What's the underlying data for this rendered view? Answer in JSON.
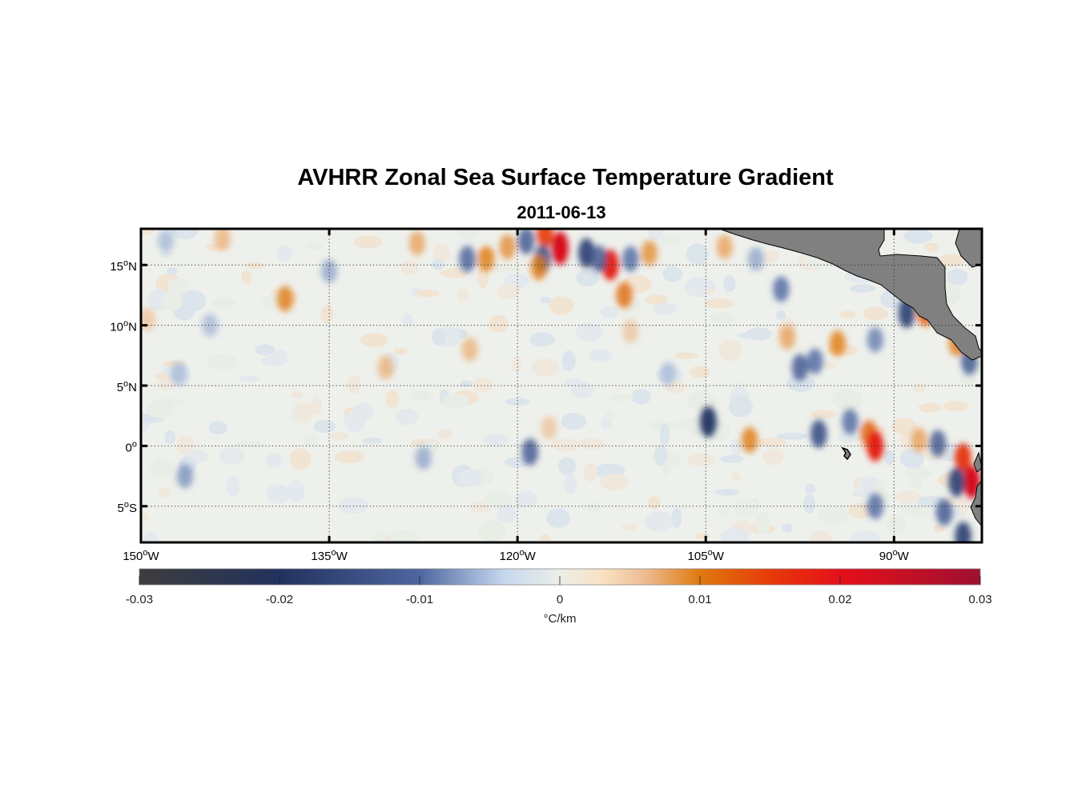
{
  "title": "AVHRR Zonal Sea Surface Temperature Gradient",
  "subtitle": "2011-06-13",
  "map": {
    "region": "Eastern Tropical Pacific",
    "lon_range": [
      -150,
      -83
    ],
    "lat_range": [
      -8,
      18
    ],
    "land_color": "#808080",
    "grid": "dotted",
    "lat_ticks": [
      {
        "value": 15,
        "num": "15",
        "hemi": "N"
      },
      {
        "value": 10,
        "num": "10",
        "hemi": "N"
      },
      {
        "value": 5,
        "num": "5",
        "hemi": "N"
      },
      {
        "value": 0,
        "num": "0",
        "hemi": ""
      },
      {
        "value": -5,
        "num": "5",
        "hemi": "S"
      }
    ],
    "lon_ticks": [
      {
        "value": -150,
        "num": "150",
        "hemi": "W"
      },
      {
        "value": -135,
        "num": "135",
        "hemi": "W"
      },
      {
        "value": -120,
        "num": "120",
        "hemi": "W"
      },
      {
        "value": -105,
        "num": "105",
        "hemi": "W"
      },
      {
        "value": -90,
        "num": "90",
        "hemi": "W"
      }
    ],
    "features": [
      {
        "lon": -116.6,
        "lat": 16.4,
        "value": 0.022
      },
      {
        "lon": -117.8,
        "lat": 17.6,
        "value": 0.015
      },
      {
        "lon": -112.6,
        "lat": 15.0,
        "value": 0.018
      },
      {
        "lon": -111.5,
        "lat": 12.5,
        "value": 0.011
      },
      {
        "lon": -118.0,
        "lat": 15.5,
        "value": -0.014
      },
      {
        "lon": -114.5,
        "lat": 16.0,
        "value": -0.016
      },
      {
        "lon": -113.5,
        "lat": 15.5,
        "value": -0.012
      },
      {
        "lon": -119.3,
        "lat": 17.0,
        "value": -0.012
      },
      {
        "lon": -111.0,
        "lat": 15.5,
        "value": -0.01
      },
      {
        "lon": -118.3,
        "lat": 14.8,
        "value": 0.01
      },
      {
        "lon": -109.5,
        "lat": 16.0,
        "value": 0.009
      },
      {
        "lon": -103.5,
        "lat": 16.5,
        "value": 0.008
      },
      {
        "lon": -101.0,
        "lat": 15.5,
        "value": -0.007
      },
      {
        "lon": -99.0,
        "lat": 13.0,
        "value": -0.01
      },
      {
        "lon": -124.0,
        "lat": 15.5,
        "value": -0.011
      },
      {
        "lon": -122.5,
        "lat": 15.5,
        "value": 0.01
      },
      {
        "lon": -120.8,
        "lat": 16.5,
        "value": 0.009
      },
      {
        "lon": -128.0,
        "lat": 16.8,
        "value": 0.008
      },
      {
        "lon": -148.0,
        "lat": 17.0,
        "value": -0.006
      },
      {
        "lon": -143.5,
        "lat": 17.2,
        "value": 0.007
      },
      {
        "lon": -135.0,
        "lat": 14.5,
        "value": -0.007
      },
      {
        "lon": -138.5,
        "lat": 12.2,
        "value": 0.01
      },
      {
        "lon": -144.5,
        "lat": 10.0,
        "value": -0.006
      },
      {
        "lon": -130.5,
        "lat": 6.5,
        "value": 0.007
      },
      {
        "lon": -147.0,
        "lat": 6.0,
        "value": -0.006
      },
      {
        "lon": -123.8,
        "lat": 8.0,
        "value": 0.007
      },
      {
        "lon": -111.0,
        "lat": 9.5,
        "value": 0.006
      },
      {
        "lon": -98.5,
        "lat": 9.0,
        "value": 0.008
      },
      {
        "lon": -96.3,
        "lat": 7.0,
        "value": -0.01
      },
      {
        "lon": -94.5,
        "lat": 8.5,
        "value": 0.01
      },
      {
        "lon": -97.5,
        "lat": 6.5,
        "value": -0.012
      },
      {
        "lon": -91.5,
        "lat": 8.8,
        "value": -0.009
      },
      {
        "lon": -89.0,
        "lat": 11.0,
        "value": -0.016
      },
      {
        "lon": -87.5,
        "lat": 11.0,
        "value": 0.012
      },
      {
        "lon": -85.0,
        "lat": 8.5,
        "value": 0.01
      },
      {
        "lon": -84.0,
        "lat": 7.0,
        "value": -0.012
      },
      {
        "lon": -104.8,
        "lat": 2.0,
        "value": -0.018
      },
      {
        "lon": -101.5,
        "lat": 0.5,
        "value": 0.01
      },
      {
        "lon": -92.0,
        "lat": 1.0,
        "value": 0.012
      },
      {
        "lon": -91.5,
        "lat": 0.0,
        "value": 0.018
      },
      {
        "lon": -96.0,
        "lat": 1.0,
        "value": -0.014
      },
      {
        "lon": -93.5,
        "lat": 2.0,
        "value": -0.01
      },
      {
        "lon": -88.0,
        "lat": 0.5,
        "value": 0.008
      },
      {
        "lon": -86.5,
        "lat": 0.2,
        "value": -0.012
      },
      {
        "lon": -84.5,
        "lat": -1.0,
        "value": 0.016
      },
      {
        "lon": -83.8,
        "lat": -3.0,
        "value": 0.022
      },
      {
        "lon": -85.0,
        "lat": -3.0,
        "value": -0.016
      },
      {
        "lon": -86.0,
        "lat": -5.5,
        "value": -0.012
      },
      {
        "lon": -84.5,
        "lat": -7.5,
        "value": -0.016
      },
      {
        "lon": -91.5,
        "lat": -5.0,
        "value": -0.01
      },
      {
        "lon": -119.0,
        "lat": -0.5,
        "value": -0.012
      },
      {
        "lon": -117.5,
        "lat": 1.5,
        "value": 0.006
      },
      {
        "lon": -127.5,
        "lat": -1.0,
        "value": -0.007
      },
      {
        "lon": -146.5,
        "lat": -2.5,
        "value": -0.008
      },
      {
        "lon": -149.5,
        "lat": 10.5,
        "value": 0.006
      },
      {
        "lon": -108.0,
        "lat": 6.0,
        "value": -0.006
      }
    ]
  },
  "colorbar": {
    "ticks": [
      "-0.03",
      "-0.02",
      "-0.01",
      "0",
      "0.01",
      "0.02",
      "0.03"
    ],
    "min": -0.03,
    "max": 0.03,
    "unit": "°C/km",
    "stops": [
      {
        "v": -0.03,
        "c": "#3d3d3d"
      },
      {
        "v": -0.02,
        "c": "#22325e"
      },
      {
        "v": -0.01,
        "c": "#4e66a0"
      },
      {
        "v": -0.004,
        "c": "#c6d8ee"
      },
      {
        "v": 0.0,
        "c": "#eceee8"
      },
      {
        "v": 0.003,
        "c": "#f9e2c4"
      },
      {
        "v": 0.006,
        "c": "#edbd94"
      },
      {
        "v": 0.01,
        "c": "#e07a10"
      },
      {
        "v": 0.015,
        "c": "#e63a08"
      },
      {
        "v": 0.02,
        "c": "#e5101a"
      },
      {
        "v": 0.03,
        "c": "#9e1030"
      }
    ]
  }
}
